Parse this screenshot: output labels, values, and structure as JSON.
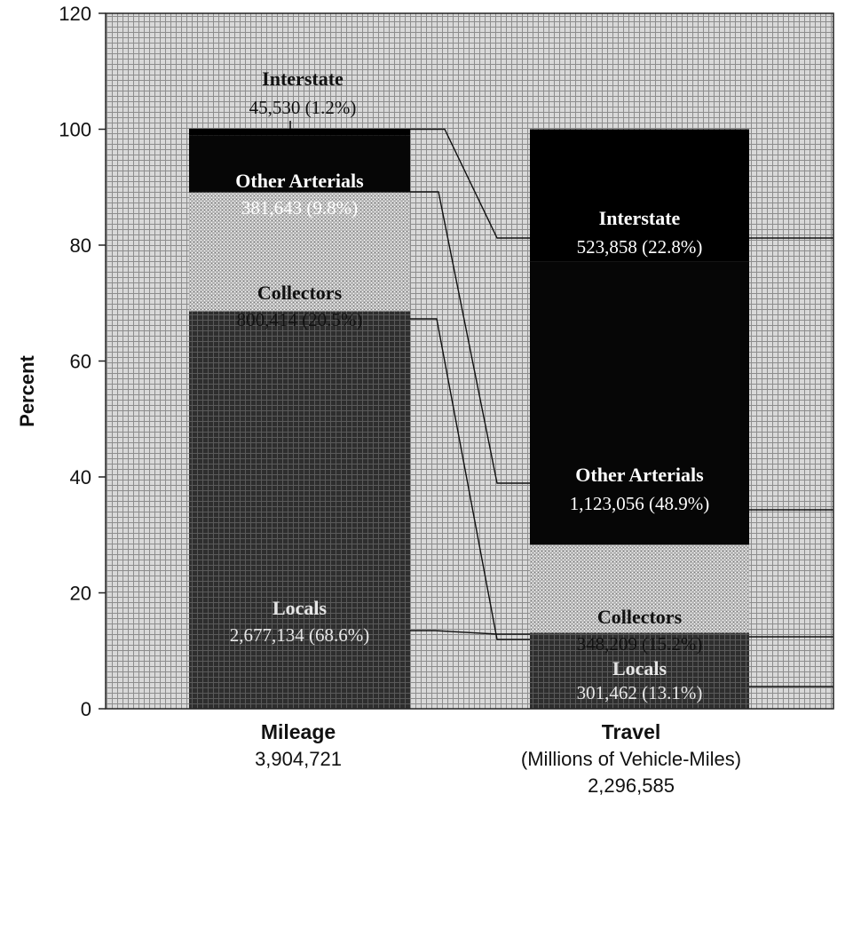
{
  "chart_data": {
    "type": "bar",
    "stacked": true,
    "ylabel": "Percent",
    "ylim": [
      0,
      120
    ],
    "yticks": [
      0,
      20,
      40,
      60,
      80,
      100,
      120
    ],
    "grid": true,
    "legend": "none",
    "categories": [
      {
        "name": "Mileage",
        "subtitle": "",
        "total": "3,904,721"
      },
      {
        "name": "Travel",
        "subtitle": "(Millions of Vehicle-Miles)",
        "total": "2,296,585"
      }
    ],
    "series": [
      {
        "name": "Locals",
        "color": "#3a3a3a",
        "values": [
          68.6,
          13.1
        ],
        "labels": [
          "2,677,134 (68.6%)",
          "301,462 (13.1%)"
        ]
      },
      {
        "name": "Collectors",
        "color": "#bdbdbd",
        "values": [
          20.5,
          15.2
        ],
        "labels": [
          "800,414 (20.5%)",
          "348,209 (15.2%)"
        ]
      },
      {
        "name": "Other Arterials",
        "color": "#080808",
        "values": [
          9.8,
          48.9
        ],
        "labels": [
          "381,643 (9.8%)",
          "1,123,056 (48.9%)"
        ]
      },
      {
        "name": "Interstate",
        "color": "#000000",
        "values": [
          1.2,
          22.8
        ],
        "labels": [
          "45,530 (1.2%)",
          "523,858 (22.8%)"
        ]
      }
    ]
  }
}
